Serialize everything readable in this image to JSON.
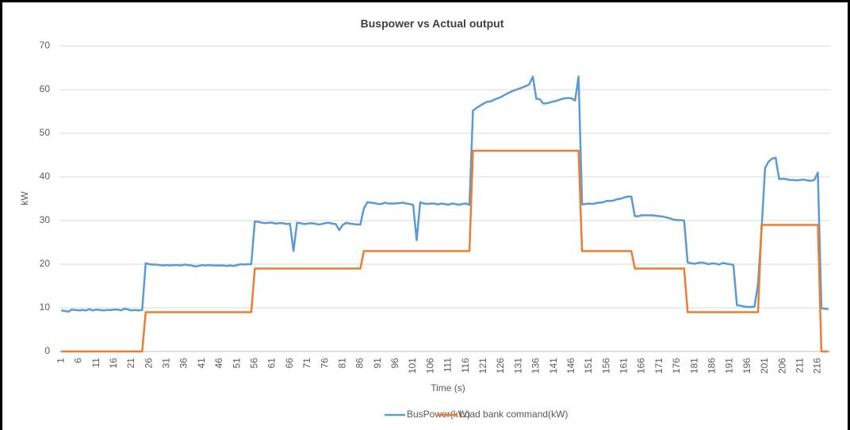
{
  "chart_data": {
    "type": "line",
    "title": "Buspower vs Actual output",
    "x_label": "Time (s)",
    "y_label": "kW",
    "categories": [
      1,
      null,
      null,
      null,
      null,
      6,
      null,
      null,
      null,
      null,
      11,
      null,
      null,
      null,
      null,
      16,
      null,
      null,
      null,
      null,
      21,
      null,
      null,
      null,
      null,
      26,
      null,
      null,
      null,
      null,
      31,
      null,
      null,
      null,
      null,
      36,
      null,
      null,
      null,
      null,
      41,
      null,
      null,
      null,
      null,
      46,
      null,
      null,
      null,
      null,
      51,
      null,
      null,
      null,
      null,
      56,
      null,
      null,
      null,
      null,
      61,
      null,
      null,
      null,
      null,
      66,
      null,
      null,
      null,
      null,
      71,
      null,
      null,
      null,
      null,
      76,
      null,
      null,
      null,
      null,
      81,
      null,
      null,
      null,
      null,
      86,
      null,
      null,
      null,
      null,
      91,
      null,
      null,
      null,
      null,
      96,
      null,
      null,
      null,
      null,
      101,
      null,
      null,
      null,
      null,
      106,
      null,
      null,
      null,
      null,
      111,
      null,
      null,
      null,
      null,
      116,
      null,
      null,
      null,
      null,
      121,
      null,
      null,
      null,
      null,
      126,
      null,
      null,
      null,
      null,
      131,
      null,
      null,
      null,
      null,
      136,
      null,
      null,
      null,
      null,
      141,
      null,
      null,
      null,
      null,
      146,
      null,
      null,
      null,
      null,
      151,
      null,
      null,
      null,
      null,
      156,
      null,
      null,
      null,
      null,
      161,
      null,
      null,
      null,
      null,
      166,
      null,
      null,
      null,
      null,
      171,
      null,
      null,
      null,
      null,
      176,
      null,
      null,
      null,
      null,
      181,
      null,
      null,
      null,
      null,
      186,
      null,
      null,
      null,
      null,
      191,
      null,
      null,
      null,
      null,
      196,
      null,
      null,
      null,
      null,
      201,
      null,
      null,
      null,
      null,
      206,
      null,
      null,
      null,
      null,
      211,
      null,
      null,
      null,
      null,
      216,
      null,
      null,
      null
    ],
    "series": [
      {
        "name": "BusPower(kW)",
        "color": "#5b9bd5",
        "values": [
          9.4,
          9.3,
          9.1,
          9.6,
          9.5,
          9.4,
          9.5,
          9.4,
          9.7,
          9.4,
          9.6,
          9.5,
          9.4,
          9.5,
          9.5,
          9.6,
          9.6,
          9.4,
          9.8,
          9.6,
          9.4,
          9.5,
          9.4,
          9.5,
          20.2,
          20,
          19.9,
          19.9,
          19.8,
          19.7,
          19.8,
          19.7,
          19.8,
          19.8,
          19.7,
          19.9,
          19.8,
          19.7,
          19.5,
          19.6,
          19.8,
          19.7,
          19.8,
          19.7,
          19.7,
          19.7,
          19.7,
          19.6,
          19.7,
          19.6,
          19.8,
          20,
          19.9,
          20,
          20,
          29.8,
          29.7,
          29.5,
          29.4,
          29.5,
          29.5,
          29.3,
          29.4,
          29.4,
          29.2,
          29.3,
          23,
          29.5,
          29.4,
          29.2,
          29.3,
          29.4,
          29.3,
          29.1,
          29.2,
          29.4,
          29.5,
          29.3,
          29.2,
          27.8,
          29,
          29.5,
          29.3,
          29.2,
          29.1,
          29.1,
          32.8,
          34.2,
          34.1,
          34,
          33.8,
          33.8,
          34.1,
          33.9,
          33.9,
          33.9,
          34,
          34.1,
          33.9,
          33.8,
          33.6,
          25.5,
          34.2,
          33.9,
          33.8,
          33.9,
          33.9,
          33.7,
          33.9,
          33.8,
          33.6,
          33.9,
          33.8,
          33.6,
          33.8,
          33.9,
          33.6,
          55.2,
          55.8,
          56.3,
          56.8,
          57.2,
          57.3,
          57.7,
          58,
          58.3,
          58.8,
          59.2,
          59.6,
          59.9,
          60.2,
          60.5,
          60.8,
          61.2,
          63,
          57.9,
          57.8,
          56.8,
          56.9,
          57.1,
          57.3,
          57.5,
          57.8,
          58,
          58.1,
          58,
          57.5,
          63,
          33.7,
          33.8,
          33.9,
          33.8,
          34,
          34.1,
          34.2,
          34.5,
          34.5,
          34.6,
          34.9,
          35,
          35.3,
          35.5,
          35.5,
          31,
          31,
          31.2,
          31.2,
          31.2,
          31.2,
          31.1,
          31,
          30.9,
          30.7,
          30.5,
          30.2,
          30.1,
          30.1,
          30,
          20.4,
          20.2,
          20.1,
          20.3,
          20.4,
          20.2,
          20,
          20.2,
          20.1,
          19.9,
          20.3,
          20.1,
          20,
          19.8,
          10.6,
          10.5,
          10.3,
          10.2,
          10.2,
          10.3,
          15.5,
          28,
          42,
          43.5,
          44.2,
          44.4,
          39.5,
          39.6,
          39.5,
          39.3,
          39.3,
          39.2,
          39.3,
          39.4,
          39.2,
          39.1,
          39.3,
          41,
          9.9,
          9.8,
          9.7
        ]
      },
      {
        "name": "Load bank command(kW)",
        "color": "#ed7d31",
        "values": [
          0,
          0,
          0,
          0,
          0,
          0,
          0,
          0,
          0,
          0,
          0,
          0,
          0,
          0,
          0,
          0,
          0,
          0,
          0,
          0,
          0,
          0,
          0,
          0,
          9,
          9,
          9,
          9,
          9,
          9,
          9,
          9,
          9,
          9,
          9,
          9,
          9,
          9,
          9,
          9,
          9,
          9,
          9,
          9,
          9,
          9,
          9,
          9,
          9,
          9,
          9,
          9,
          9,
          9,
          9,
          19,
          19,
          19,
          19,
          19,
          19,
          19,
          19,
          19,
          19,
          19,
          19,
          19,
          19,
          19,
          19,
          19,
          19,
          19,
          19,
          19,
          19,
          19,
          19,
          19,
          19,
          19,
          19,
          19,
          19,
          19,
          23,
          23,
          23,
          23,
          23,
          23,
          23,
          23,
          23,
          23,
          23,
          23,
          23,
          23,
          23,
          23,
          23,
          23,
          23,
          23,
          23,
          23,
          23,
          23,
          23,
          23,
          23,
          23,
          23,
          23,
          23,
          46,
          46,
          46,
          46,
          46,
          46,
          46,
          46,
          46,
          46,
          46,
          46,
          46,
          46,
          46,
          46,
          46,
          46,
          46,
          46,
          46,
          46,
          46,
          46,
          46,
          46,
          46,
          46,
          46,
          46,
          46,
          23,
          23,
          23,
          23,
          23,
          23,
          23,
          23,
          23,
          23,
          23,
          23,
          23,
          23,
          23,
          19,
          19,
          19,
          19,
          19,
          19,
          19,
          19,
          19,
          19,
          19,
          19,
          19,
          19,
          19,
          9,
          9,
          9,
          9,
          9,
          9,
          9,
          9,
          9,
          9,
          9,
          9,
          9,
          9,
          9,
          9,
          9,
          9,
          9,
          9,
          9,
          29,
          29,
          29,
          29,
          29,
          29,
          29,
          29,
          29,
          29,
          29,
          29,
          29,
          29,
          29,
          29,
          29,
          0,
          0,
          0
        ]
      }
    ],
    "ylim": [
      0,
      70
    ],
    "yticks": [
      0,
      10,
      20,
      30,
      40,
      50,
      60,
      70
    ],
    "grid": true,
    "legend": "bottom"
  }
}
